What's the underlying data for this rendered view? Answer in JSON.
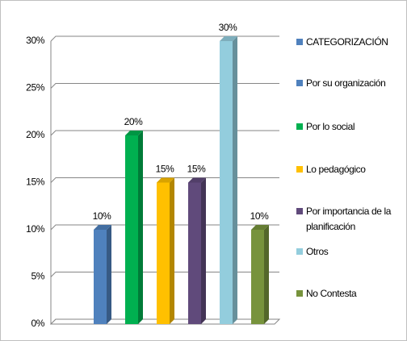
{
  "chart_data": {
    "type": "bar",
    "categories": [
      "Por su organización",
      "Por lo social",
      "Lo pedagógico",
      "Por importancia de la planificación",
      "Otros",
      "No Contesta"
    ],
    "series": [
      {
        "name": "CATEGORIZACIÓN",
        "color": "#4f81bd",
        "colors": [
          "#4f81bd",
          "#00b050",
          "#ffc000",
          "#604a7b",
          "#93cddd",
          "#77933c"
        ],
        "values": [
          10,
          20,
          15,
          15,
          30,
          10
        ],
        "value_labels": [
          "10%",
          "20%",
          "15%",
          "15%",
          "30%",
          "10%"
        ]
      }
    ],
    "ylim": [
      0,
      30
    ],
    "yticks": [
      {
        "value": 0,
        "label": "0%"
      },
      {
        "value": 5,
        "label": "5%"
      },
      {
        "value": 10,
        "label": "10%"
      },
      {
        "value": 15,
        "label": "15%"
      },
      {
        "value": 20,
        "label": "20%"
      },
      {
        "value": 25,
        "label": "25%"
      },
      {
        "value": 30,
        "label": "30%"
      }
    ],
    "grid": true,
    "legend": "right"
  }
}
